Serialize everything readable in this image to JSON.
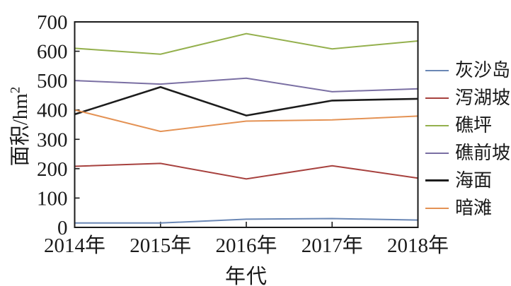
{
  "chart_data": {
    "type": "line",
    "title": "",
    "xlabel": "年代",
    "ylabel_base": "面积/hm",
    "ylabel_sup": "2",
    "categories": [
      "2014年",
      "2015年",
      "2016年",
      "2017年",
      "2018年"
    ],
    "series": [
      {
        "name": "灰沙岛",
        "color": "#6a87b5",
        "stroke_width": 2,
        "values": [
          15,
          15,
          28,
          30,
          25
        ]
      },
      {
        "name": "泻湖坡",
        "color": "#a7413e",
        "stroke_width": 2,
        "values": [
          208,
          218,
          165,
          210,
          168
        ]
      },
      {
        "name": "礁坪",
        "color": "#94b04d",
        "stroke_width": 2,
        "values": [
          610,
          590,
          660,
          608,
          635
        ]
      },
      {
        "name": "礁前坡",
        "color": "#7a6fa3",
        "stroke_width": 2,
        "values": [
          500,
          488,
          508,
          462,
          472
        ]
      },
      {
        "name": "海面",
        "color": "#1c1c1c",
        "stroke_width": 2.6,
        "values": [
          385,
          478,
          381,
          432,
          438
        ]
      },
      {
        "name": "暗滩",
        "color": "#e49254",
        "stroke_width": 2,
        "values": [
          400,
          327,
          362,
          366,
          379
        ]
      }
    ],
    "ylim": [
      0,
      700
    ],
    "ytick_step": 100,
    "ytick_labels": [
      "0",
      "100",
      "200",
      "300",
      "400",
      "500",
      "600",
      "700"
    ],
    "grid": false,
    "legend_position": "right",
    "axis_color": "#1a1a1a",
    "background_color": "#ffffff"
  }
}
